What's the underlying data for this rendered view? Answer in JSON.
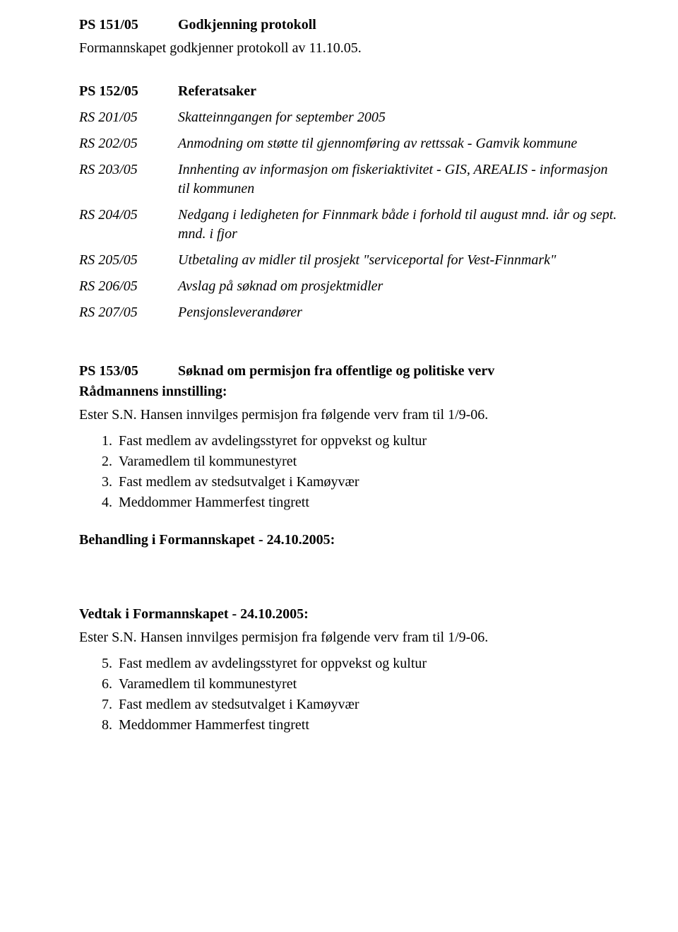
{
  "sec151": {
    "code": "PS 151/05",
    "title": "Godkjenning protokoll",
    "body": "Formannskapet godkjenner protokoll av 11.10.05."
  },
  "sec152": {
    "code": "PS 152/05",
    "title": "Referatsaker",
    "items": [
      {
        "code": "RS 201/05",
        "text": "Skatteinngangen  for september 2005"
      },
      {
        "code": "RS 202/05",
        "text": "Anmodning om støtte til gjennomføring av rettssak - Gamvik kommune"
      },
      {
        "code": "RS 203/05",
        "text": "Innhenting av informasjon om fiskeriaktivitet - GIS, AREALIS - informasjon til kommunen"
      },
      {
        "code": "RS 204/05",
        "text": "Nedgang i ledigheten for Finnmark både i forhold til august mnd. iår og sept. mnd. i fjor"
      },
      {
        "code": "RS 205/05",
        "text": "Utbetaling av midler til prosjekt \"serviceportal for Vest-Finnmark\""
      },
      {
        "code": "RS 206/05",
        "text": "Avslag på søknad om prosjektmidler"
      },
      {
        "code": "RS 207/05",
        "text": "Pensjonsleverandører"
      }
    ]
  },
  "sec153": {
    "code": "PS 153/05",
    "title": "Søknad om permisjon fra offentlige og politiske verv",
    "sub1": "Rådmannens innstilling:",
    "line1": "Ester S.N. Hansen innvilges permisjon fra følgende verv fram til 1/9-06.",
    "list1": [
      "Fast medlem av avdelingsstyret for oppvekst og kultur",
      "Varamedlem til kommunestyret",
      "Fast medlem av stedsutvalget i Kamøyvær",
      "Meddommer Hammerfest tingrett"
    ],
    "list1_start": 1,
    "sub2": "Behandling i Formannskapet - 24.10.2005:",
    "sub3": "Vedtak i Formannskapet - 24.10.2005:",
    "line2": "Ester S.N. Hansen innvilges permisjon fra følgende verv fram til 1/9-06.",
    "list2": [
      "Fast medlem av avdelingsstyret for oppvekst og kultur",
      "Varamedlem til kommunestyret",
      "Fast medlem av stedsutvalget i Kamøyvær",
      "Meddommer Hammerfest tingrett"
    ],
    "list2_start": 5
  }
}
